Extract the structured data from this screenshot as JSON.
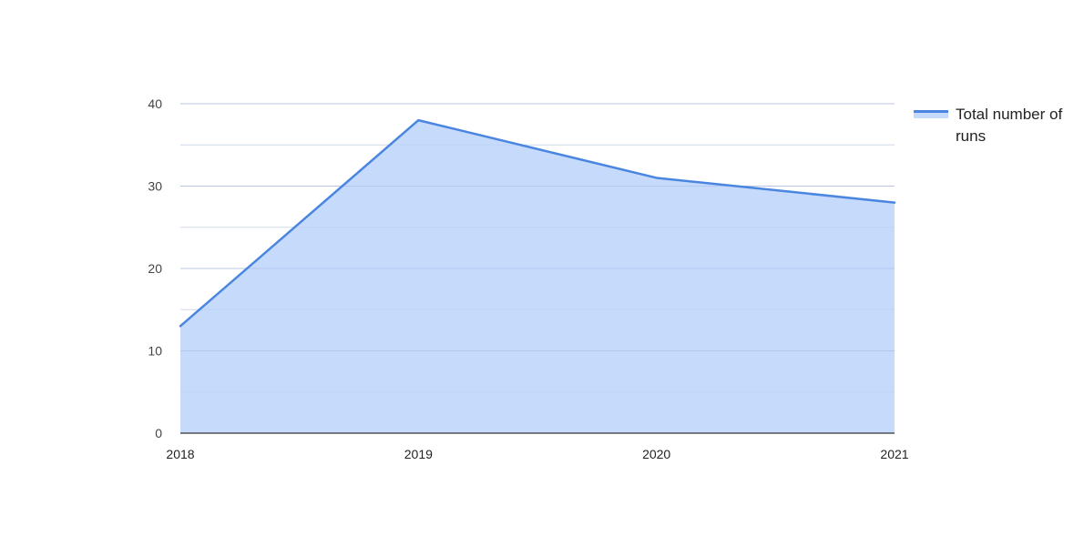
{
  "chart_data": {
    "type": "area",
    "title": "",
    "xlabel": "",
    "ylabel": "",
    "categories": [
      "2018",
      "2019",
      "2020",
      "2021"
    ],
    "series": [
      {
        "name": "Total number of runs",
        "values": [
          13,
          38,
          31,
          28
        ]
      }
    ],
    "ylim": [
      0,
      40
    ],
    "y_ticks": [
      "0",
      "10",
      "20",
      "30",
      "40"
    ],
    "grid": true,
    "minor_grid": true,
    "legend_position": "right",
    "colors": {
      "line": "#4a86e0",
      "fill": "#c6dafc",
      "grid": "#d9d9d9",
      "minor_grid": "#ececec",
      "baseline": "#333333",
      "tick_text": "#444444"
    }
  }
}
